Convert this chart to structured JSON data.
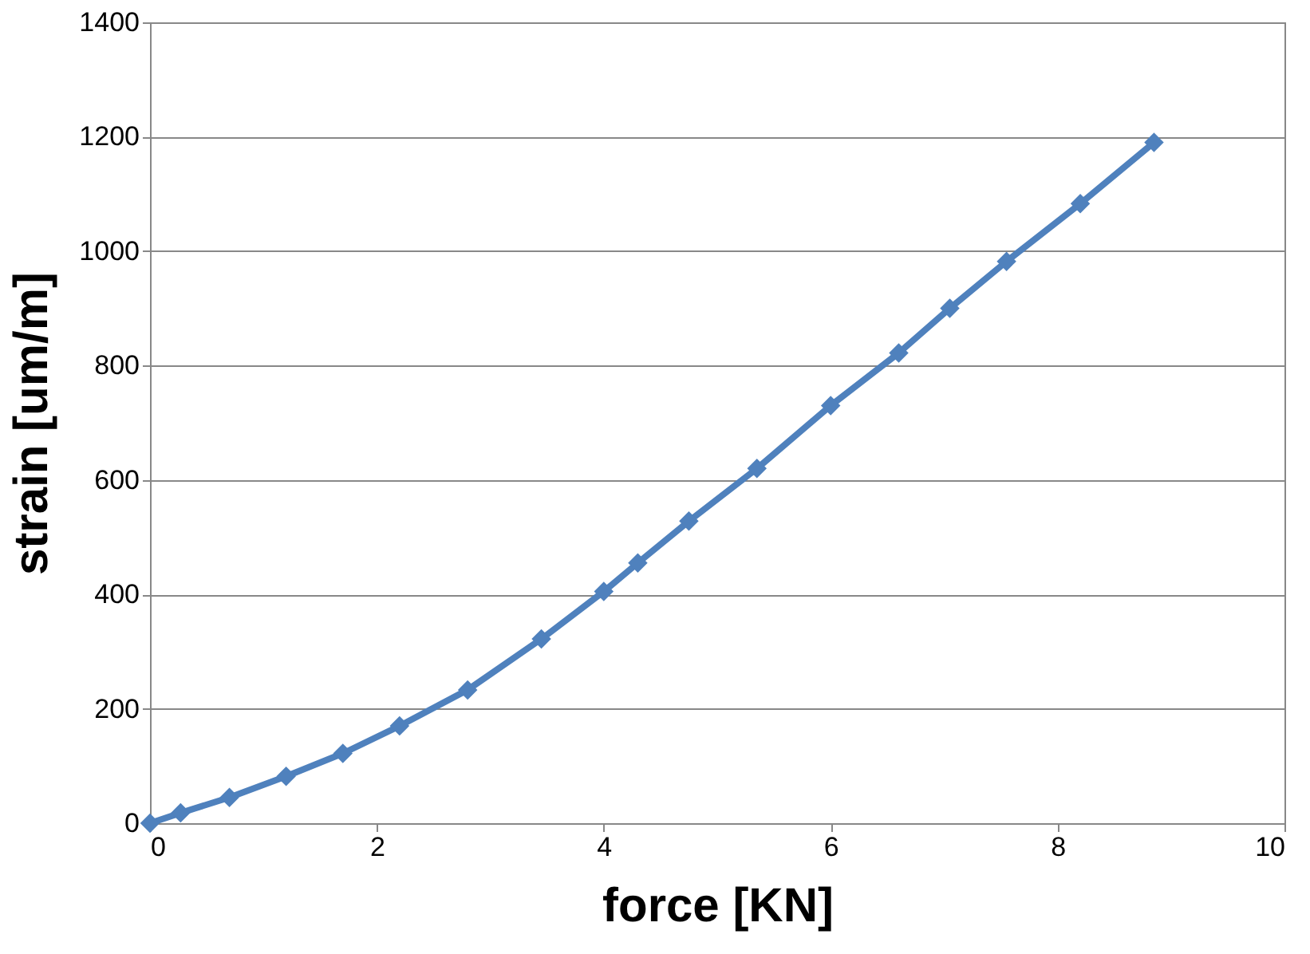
{
  "chart_data": {
    "type": "line",
    "xlabel": "force [KN]",
    "ylabel": "strain [um/m]",
    "x": [
      0,
      0.27,
      0.7,
      1.2,
      1.7,
      2.2,
      2.8,
      3.45,
      4.0,
      4.3,
      4.75,
      5.35,
      6.0,
      6.6,
      7.05,
      7.55,
      8.2,
      8.85
    ],
    "series": [
      {
        "color": "#4f81bd",
        "values": [
          0,
          18,
          45,
          82,
          122,
          170,
          233,
          322,
          405,
          455,
          528,
          620,
          730,
          822,
          900,
          982,
          1083,
          1190
        ]
      }
    ],
    "xlim": [
      0,
      10
    ],
    "xticks": [
      0,
      2,
      4,
      6,
      8,
      10
    ],
    "ylim": [
      0,
      1400
    ],
    "yticks": [
      0,
      200,
      400,
      600,
      800,
      1000,
      1200,
      1400
    ],
    "grid": "y",
    "marker": "diamond",
    "line_style": "solid"
  }
}
